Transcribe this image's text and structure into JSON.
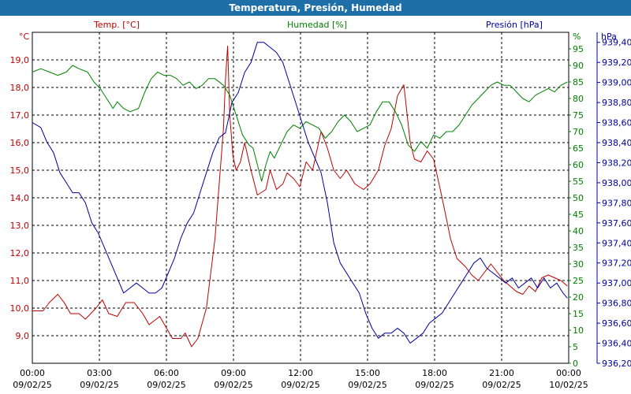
{
  "window": {
    "title": "Temperatura, Presión, Humedad"
  },
  "colors": {
    "temp": "#c00000",
    "hum": "#008000",
    "pres": "#0000a0",
    "title_bg": "#1e6fa8",
    "grid": "#000000"
  },
  "chart_data": {
    "type": "line",
    "title": "Temperatura, Presión, Humedad",
    "grid": true,
    "x_ticks": [
      {
        "time": "00:00",
        "date": "09/02/25"
      },
      {
        "time": "03:00",
        "date": "09/02/25"
      },
      {
        "time": "06:00",
        "date": "09/02/25"
      },
      {
        "time": "09:00",
        "date": "09/02/25"
      },
      {
        "time": "12:00",
        "date": "09/02/25"
      },
      {
        "time": "15:00",
        "date": "09/02/25"
      },
      {
        "time": "18:00",
        "date": "09/02/25"
      },
      {
        "time": "21:00",
        "date": "09/02/25"
      },
      {
        "time": "00:00",
        "date": "10/02/25"
      }
    ],
    "axes": {
      "temp": {
        "label": "Temp. [°C]",
        "unit": "°C",
        "ylim": [
          8.0,
          20.0
        ],
        "ticks": [
          "9,0",
          "10,0",
          "11,0",
          "12,0",
          "13,0",
          "14,0",
          "15,0",
          "16,0",
          "17,0",
          "18,0",
          "19,0"
        ]
      },
      "hum": {
        "label": "Humedad [%]",
        "unit": "%",
        "ylim": [
          0,
          100
        ],
        "ticks": [
          "0",
          "5",
          "10",
          "15",
          "20",
          "25",
          "30",
          "35",
          "40",
          "45",
          "50",
          "55",
          "60",
          "65",
          "70",
          "75",
          "80",
          "85",
          "90",
          "95"
        ]
      },
      "pres": {
        "label": "Presión [hPa]",
        "unit": "hPa",
        "ylim": [
          936.2,
          939.5
        ],
        "ticks": [
          "936,20",
          "936,40",
          "936,60",
          "936,80",
          "937,00",
          "937,20",
          "937,40",
          "937,60",
          "937,80",
          "938,00",
          "938,20",
          "938,40",
          "938,60",
          "938,80",
          "939,00",
          "939,20",
          "939,40"
        ]
      }
    },
    "series": [
      {
        "name": "Temp. [°C]",
        "axis": "temp",
        "color": "#c00000",
        "points": [
          [
            0,
            9.9
          ],
          [
            0.5,
            9.9
          ],
          [
            0.8,
            10.2
          ],
          [
            1.2,
            10.5
          ],
          [
            1.5,
            10.2
          ],
          [
            1.8,
            9.8
          ],
          [
            2.2,
            9.8
          ],
          [
            2.5,
            9.6
          ],
          [
            3.0,
            10.0
          ],
          [
            3.3,
            10.3
          ],
          [
            3.6,
            9.8
          ],
          [
            4.0,
            9.7
          ],
          [
            4.4,
            10.2
          ],
          [
            4.8,
            10.2
          ],
          [
            5.2,
            9.8
          ],
          [
            5.5,
            9.4
          ],
          [
            6.0,
            9.7
          ],
          [
            6.3,
            9.3
          ],
          [
            6.6,
            8.9
          ],
          [
            7.0,
            8.9
          ],
          [
            7.2,
            9.1
          ],
          [
            7.5,
            8.6
          ],
          [
            7.8,
            8.9
          ],
          [
            8.2,
            10.0
          ],
          [
            8.6,
            12.5
          ],
          [
            8.8,
            14.5
          ],
          [
            9.0,
            16.5
          ],
          [
            9.1,
            18.3
          ],
          [
            9.2,
            19.5
          ],
          [
            9.3,
            17.0
          ],
          [
            9.45,
            15.5
          ],
          [
            9.6,
            15.0
          ],
          [
            9.8,
            15.3
          ],
          [
            10.0,
            16.0
          ],
          [
            10.3,
            15.0
          ],
          [
            10.6,
            14.1
          ],
          [
            11.0,
            14.3
          ],
          [
            11.2,
            15.0
          ],
          [
            11.5,
            14.3
          ],
          [
            11.8,
            14.5
          ],
          [
            12.0,
            14.9
          ],
          [
            12.3,
            14.7
          ],
          [
            12.6,
            14.4
          ],
          [
            12.9,
            15.3
          ],
          [
            13.2,
            15.0
          ],
          [
            13.6,
            16.4
          ],
          [
            13.9,
            15.8
          ],
          [
            14.2,
            15.0
          ],
          [
            14.5,
            14.7
          ],
          [
            14.8,
            15.0
          ],
          [
            15.2,
            14.5
          ],
          [
            15.6,
            14.3
          ],
          [
            15.9,
            14.5
          ],
          [
            16.3,
            15.0
          ],
          [
            16.6,
            15.9
          ],
          [
            16.9,
            16.5
          ],
          [
            17.2,
            17.7
          ],
          [
            17.5,
            18.1
          ],
          [
            17.8,
            16.0
          ],
          [
            18.0,
            15.4
          ],
          [
            18.3,
            15.3
          ],
          [
            18.6,
            15.7
          ],
          [
            18.9,
            15.4
          ],
          [
            19.3,
            14.0
          ],
          [
            19.7,
            12.5
          ],
          [
            20.0,
            11.8
          ],
          [
            20.4,
            11.5
          ],
          [
            20.7,
            11.2
          ],
          [
            21.0,
            11.0
          ],
          [
            21.3,
            11.3
          ],
          [
            21.6,
            11.6
          ],
          [
            21.9,
            11.3
          ],
          [
            22.2,
            11.0
          ],
          [
            22.5,
            10.8
          ],
          [
            22.8,
            10.6
          ],
          [
            23.1,
            10.5
          ],
          [
            23.4,
            10.8
          ],
          [
            23.7,
            10.6
          ],
          [
            24.0,
            11.1
          ],
          [
            24.3,
            11.2
          ],
          [
            24.6,
            11.1
          ],
          [
            24.9,
            11.0
          ],
          [
            25.2,
            10.8
          ]
        ]
      },
      {
        "name": "Humedad [%]",
        "axis": "hum",
        "color": "#008000",
        "points": [
          [
            0,
            88
          ],
          [
            0.4,
            89
          ],
          [
            0.8,
            88
          ],
          [
            1.2,
            87
          ],
          [
            1.6,
            88
          ],
          [
            1.9,
            90
          ],
          [
            2.2,
            89
          ],
          [
            2.6,
            88
          ],
          [
            2.9,
            85
          ],
          [
            3.2,
            83
          ],
          [
            3.5,
            80
          ],
          [
            3.8,
            77
          ],
          [
            4.0,
            79
          ],
          [
            4.3,
            77
          ],
          [
            4.6,
            76
          ],
          [
            5.0,
            77
          ],
          [
            5.3,
            82
          ],
          [
            5.6,
            86
          ],
          [
            5.9,
            88
          ],
          [
            6.2,
            87
          ],
          [
            6.5,
            87
          ],
          [
            6.8,
            86
          ],
          [
            7.1,
            84
          ],
          [
            7.4,
            85
          ],
          [
            7.7,
            83
          ],
          [
            8.0,
            84
          ],
          [
            8.3,
            86
          ],
          [
            8.6,
            86
          ],
          [
            9.0,
            84
          ],
          [
            9.3,
            81
          ],
          [
            9.6,
            75
          ],
          [
            9.9,
            69
          ],
          [
            10.2,
            66
          ],
          [
            10.4,
            65
          ],
          [
            10.6,
            60
          ],
          [
            10.8,
            55
          ],
          [
            11.0,
            60
          ],
          [
            11.2,
            64
          ],
          [
            11.4,
            62
          ],
          [
            11.7,
            66
          ],
          [
            12.0,
            70
          ],
          [
            12.3,
            72
          ],
          [
            12.6,
            71
          ],
          [
            12.9,
            73
          ],
          [
            13.2,
            72
          ],
          [
            13.5,
            71
          ],
          [
            13.8,
            68
          ],
          [
            14.1,
            70
          ],
          [
            14.4,
            73
          ],
          [
            14.7,
            75
          ],
          [
            15.0,
            73
          ],
          [
            15.3,
            70
          ],
          [
            15.6,
            71
          ],
          [
            15.9,
            72
          ],
          [
            16.2,
            76
          ],
          [
            16.5,
            79
          ],
          [
            16.8,
            79
          ],
          [
            17.1,
            76
          ],
          [
            17.4,
            72
          ],
          [
            17.7,
            66
          ],
          [
            18.0,
            64
          ],
          [
            18.3,
            67
          ],
          [
            18.6,
            65
          ],
          [
            18.9,
            69
          ],
          [
            19.2,
            68
          ],
          [
            19.5,
            70
          ],
          [
            19.8,
            70
          ],
          [
            20.1,
            72
          ],
          [
            20.4,
            75
          ],
          [
            20.7,
            78
          ],
          [
            21.0,
            80
          ],
          [
            21.3,
            82
          ],
          [
            21.6,
            84
          ],
          [
            21.9,
            85
          ],
          [
            22.2,
            84
          ],
          [
            22.5,
            84
          ],
          [
            22.8,
            82
          ],
          [
            23.1,
            80
          ],
          [
            23.4,
            79
          ],
          [
            23.7,
            81
          ],
          [
            24.0,
            82
          ],
          [
            24.3,
            83
          ],
          [
            24.6,
            82
          ],
          [
            24.9,
            84
          ],
          [
            25.2,
            85
          ]
        ]
      },
      {
        "name": "Presión [hPa]",
        "axis": "pres",
        "color": "#0000a0",
        "points": [
          [
            0,
            938.6
          ],
          [
            0.4,
            938.55
          ],
          [
            0.7,
            938.4
          ],
          [
            1.0,
            938.3
          ],
          [
            1.3,
            938.1
          ],
          [
            1.6,
            938.0
          ],
          [
            1.9,
            937.9
          ],
          [
            2.2,
            937.9
          ],
          [
            2.5,
            937.8
          ],
          [
            2.8,
            937.6
          ],
          [
            3.1,
            937.5
          ],
          [
            3.4,
            937.35
          ],
          [
            3.7,
            937.2
          ],
          [
            4.0,
            937.05
          ],
          [
            4.3,
            936.9
          ],
          [
            4.6,
            936.95
          ],
          [
            4.9,
            937.0
          ],
          [
            5.2,
            936.95
          ],
          [
            5.5,
            936.9
          ],
          [
            5.8,
            936.9
          ],
          [
            6.1,
            936.95
          ],
          [
            6.4,
            937.1
          ],
          [
            6.7,
            937.25
          ],
          [
            7.0,
            937.45
          ],
          [
            7.3,
            937.6
          ],
          [
            7.6,
            937.7
          ],
          [
            7.9,
            937.9
          ],
          [
            8.2,
            938.1
          ],
          [
            8.5,
            938.3
          ],
          [
            8.8,
            938.45
          ],
          [
            9.1,
            938.5
          ],
          [
            9.4,
            938.8
          ],
          [
            9.7,
            938.9
          ],
          [
            10.0,
            939.1
          ],
          [
            10.3,
            939.2
          ],
          [
            10.6,
            939.4
          ],
          [
            10.9,
            939.4
          ],
          [
            11.2,
            939.35
          ],
          [
            11.5,
            939.3
          ],
          [
            11.8,
            939.2
          ],
          [
            12.1,
            939.0
          ],
          [
            12.4,
            938.8
          ],
          [
            12.7,
            938.6
          ],
          [
            13.0,
            938.4
          ],
          [
            13.3,
            938.25
          ],
          [
            13.6,
            938.1
          ],
          [
            13.9,
            937.8
          ],
          [
            14.2,
            937.4
          ],
          [
            14.5,
            937.2
          ],
          [
            14.8,
            937.1
          ],
          [
            15.1,
            937.0
          ],
          [
            15.4,
            936.9
          ],
          [
            15.7,
            936.7
          ],
          [
            16.0,
            936.55
          ],
          [
            16.3,
            936.45
          ],
          [
            16.6,
            936.5
          ],
          [
            16.9,
            936.5
          ],
          [
            17.2,
            936.55
          ],
          [
            17.5,
            936.5
          ],
          [
            17.8,
            936.4
          ],
          [
            18.1,
            936.45
          ],
          [
            18.4,
            936.5
          ],
          [
            18.7,
            936.6
          ],
          [
            19.0,
            936.65
          ],
          [
            19.3,
            936.7
          ],
          [
            19.6,
            936.8
          ],
          [
            19.9,
            936.9
          ],
          [
            20.2,
            937.0
          ],
          [
            20.5,
            937.1
          ],
          [
            20.8,
            937.2
          ],
          [
            21.1,
            937.25
          ],
          [
            21.4,
            937.15
          ],
          [
            21.7,
            937.1
          ],
          [
            22.0,
            937.05
          ],
          [
            22.3,
            937.0
          ],
          [
            22.6,
            937.05
          ],
          [
            22.9,
            936.95
          ],
          [
            23.2,
            937.0
          ],
          [
            23.5,
            937.05
          ],
          [
            23.8,
            936.95
          ],
          [
            24.1,
            937.05
          ],
          [
            24.4,
            936.95
          ],
          [
            24.7,
            937.0
          ],
          [
            25.0,
            936.9
          ],
          [
            25.2,
            936.85
          ]
        ]
      }
    ]
  }
}
